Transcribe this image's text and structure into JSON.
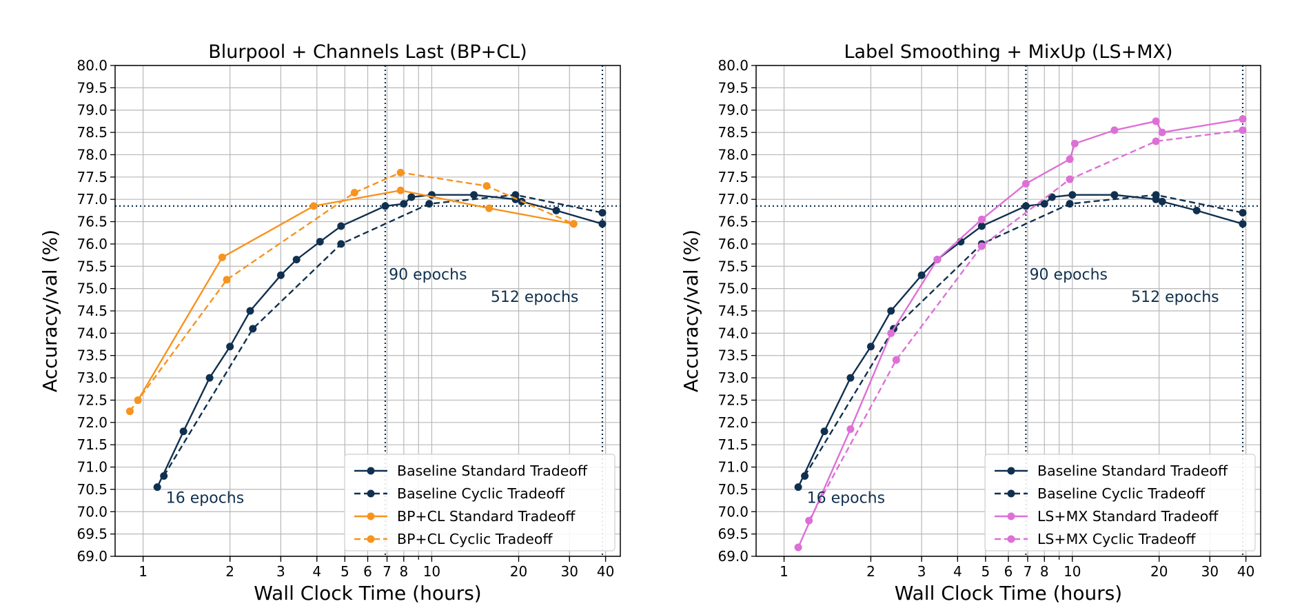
{
  "colors": {
    "navy": "#10304f",
    "orange": "#f7931e",
    "pink": "#de6fd7",
    "grid": "#b8b8b8"
  },
  "chart_data": [
    {
      "type": "line",
      "title": "Blurpool + Channels Last (BP+CL)",
      "xlabel": "Wall Clock Time (hours)",
      "ylabel": "Accuracy/val (%)",
      "xscale": "log",
      "xlim": [
        0.8,
        45
      ],
      "ylim": [
        69.0,
        80.0
      ],
      "yticks": [
        "69.0",
        "69.5",
        "70.0",
        "70.5",
        "71.0",
        "71.5",
        "72.0",
        "72.5",
        "73.0",
        "73.5",
        "74.0",
        "74.5",
        "75.0",
        "75.5",
        "76.0",
        "76.5",
        "77.0",
        "77.5",
        "78.0",
        "78.5",
        "79.0",
        "79.5",
        "80.0"
      ],
      "xticks": [
        1,
        2,
        3,
        4,
        5,
        6,
        7,
        8,
        10,
        20,
        30,
        40
      ],
      "legend_position": "lower-right",
      "hline": 76.85,
      "vlines": [
        6.9,
        39.0
      ],
      "annotations": [
        {
          "text": "90 epochs",
          "x": 7.1,
          "y": 75.2
        },
        {
          "text": "512 epochs",
          "x": 16.0,
          "y": 74.7
        },
        {
          "text": "16 epochs",
          "x": 1.2,
          "y": 70.2
        }
      ],
      "series": [
        {
          "name": "Baseline Standard Tradeoff",
          "color": "navy",
          "dash": false,
          "x": [
            1.12,
            1.38,
            1.7,
            2.0,
            2.35,
            3.0,
            3.4,
            4.1,
            4.85,
            6.9,
            8.0,
            8.5,
            10.0,
            14.0,
            19.5,
            20.5,
            27.0,
            39.0
          ],
          "y": [
            70.55,
            71.8,
            73.0,
            73.7,
            74.5,
            75.3,
            75.65,
            76.05,
            76.4,
            76.85,
            76.9,
            77.05,
            77.1,
            77.1,
            77.0,
            76.95,
            76.75,
            76.45
          ]
        },
        {
          "name": "Baseline Cyclic Tradeoff",
          "color": "navy",
          "dash": true,
          "x": [
            1.18,
            2.4,
            4.85,
            9.8,
            19.5,
            39.0
          ],
          "y": [
            70.8,
            74.1,
            76.0,
            76.9,
            77.1,
            76.7
          ]
        },
        {
          "name": "BP+CL Standard Tradeoff",
          "color": "orange",
          "dash": false,
          "x": [
            0.96,
            1.88,
            3.9,
            7.8,
            15.8,
            31.0
          ],
          "y": [
            72.5,
            75.7,
            76.85,
            77.2,
            76.8,
            76.45
          ]
        },
        {
          "name": "BP+CL Cyclic Tradeoff",
          "color": "orange",
          "dash": true,
          "x": [
            0.9,
            1.95,
            5.4,
            7.8,
            15.5,
            31.0
          ],
          "y": [
            72.25,
            75.2,
            77.15,
            77.6,
            77.3,
            76.45
          ]
        }
      ]
    },
    {
      "type": "line",
      "title": "Label Smoothing + MixUp (LS+MX)",
      "xlabel": "Wall Clock Time (hours)",
      "ylabel": "Accuracy/val (%)",
      "xscale": "log",
      "xlim": [
        0.8,
        45
      ],
      "ylim": [
        69.0,
        80.0
      ],
      "yticks": [
        "69.0",
        "69.5",
        "70.0",
        "70.5",
        "71.0",
        "71.5",
        "72.0",
        "72.5",
        "73.0",
        "73.5",
        "74.0",
        "74.5",
        "75.0",
        "75.5",
        "76.0",
        "76.5",
        "77.0",
        "77.5",
        "78.0",
        "78.5",
        "79.0",
        "79.5",
        "80.0"
      ],
      "xticks": [
        1,
        2,
        3,
        4,
        5,
        6,
        7,
        8,
        10,
        20,
        30,
        40
      ],
      "legend_position": "lower-right",
      "hline": 76.85,
      "vlines": [
        6.9,
        39.0
      ],
      "annotations": [
        {
          "text": "90 epochs",
          "x": 7.1,
          "y": 75.2
        },
        {
          "text": "512 epochs",
          "x": 16.0,
          "y": 74.7
        },
        {
          "text": "16 epochs",
          "x": 1.2,
          "y": 70.2
        }
      ],
      "series": [
        {
          "name": "Baseline Standard Tradeoff",
          "color": "navy",
          "dash": false,
          "x": [
            1.12,
            1.38,
            1.7,
            2.0,
            2.35,
            3.0,
            3.4,
            4.1,
            4.85,
            6.9,
            8.0,
            8.5,
            10.0,
            14.0,
            19.5,
            20.5,
            27.0,
            39.0
          ],
          "y": [
            70.55,
            71.8,
            73.0,
            73.7,
            74.5,
            75.3,
            75.65,
            76.05,
            76.4,
            76.85,
            76.9,
            77.05,
            77.1,
            77.1,
            77.0,
            76.95,
            76.75,
            76.45
          ]
        },
        {
          "name": "Baseline Cyclic Tradeoff",
          "color": "navy",
          "dash": true,
          "x": [
            1.18,
            2.4,
            4.85,
            9.8,
            19.5,
            39.0
          ],
          "y": [
            70.8,
            74.1,
            76.0,
            76.9,
            77.1,
            76.7
          ]
        },
        {
          "name": "LS+MX Standard Tradeoff",
          "color": "pink",
          "dash": false,
          "x": [
            1.12,
            1.7,
            2.35,
            3.4,
            4.85,
            6.9,
            9.8,
            10.2,
            14.0,
            19.5,
            20.5,
            39.0
          ],
          "y": [
            69.2,
            71.85,
            74.0,
            75.65,
            76.55,
            77.35,
            77.9,
            78.25,
            78.55,
            78.75,
            78.5,
            78.8
          ]
        },
        {
          "name": "LS+MX Cyclic Tradeoff",
          "color": "pink",
          "dash": true,
          "x": [
            1.22,
            2.45,
            4.85,
            9.8,
            19.5,
            39.0
          ],
          "y": [
            69.8,
            73.4,
            75.95,
            77.45,
            78.3,
            78.55
          ]
        }
      ]
    }
  ]
}
